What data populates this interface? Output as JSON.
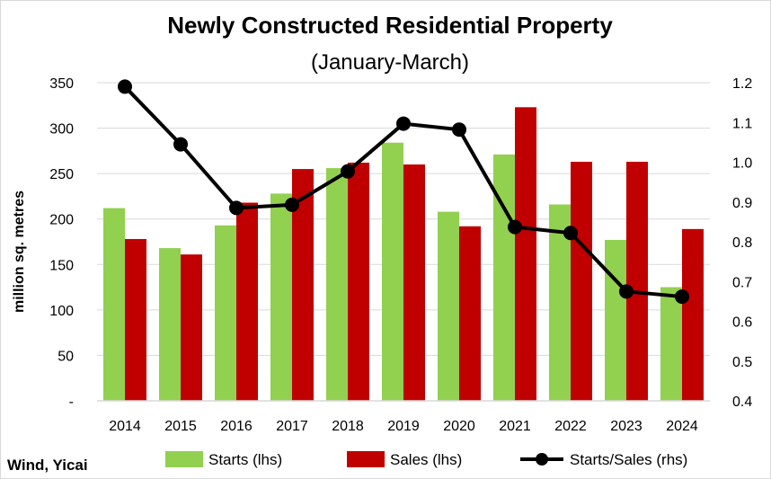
{
  "chart_data": {
    "type": "bar",
    "title": "Newly Constructed Residential Property",
    "subtitle": "(January-March)",
    "ylabel": "million sq. metres",
    "categories": [
      "2014",
      "2015",
      "2016",
      "2017",
      "2018",
      "2019",
      "2020",
      "2021",
      "2022",
      "2023",
      "2024"
    ],
    "ylim": [
      0,
      350
    ],
    "y_ticks": [
      "-",
      "50",
      "100",
      "150",
      "200",
      "250",
      "300",
      "350"
    ],
    "y2lim": [
      0.4,
      1.2
    ],
    "y2_ticks": [
      "0.4",
      "0.5",
      "0.6",
      "0.7",
      "0.8",
      "0.9",
      "1.0",
      "1.1",
      "1.2"
    ],
    "series": [
      {
        "name": "Starts (lhs)",
        "kind": "bar",
        "color": "#92d050",
        "values": [
          212,
          168,
          193,
          228,
          256,
          284,
          208,
          271,
          216,
          177,
          125
        ]
      },
      {
        "name": "Sales (lhs)",
        "kind": "bar",
        "color": "#c00000",
        "values": [
          178,
          161,
          218,
          255,
          262,
          260,
          192,
          323,
          263,
          263,
          189
        ]
      },
      {
        "name": "Starts/Sales (rhs)",
        "kind": "line",
        "axis": "right",
        "color": "#000000",
        "values": [
          1.19,
          1.045,
          0.885,
          0.893,
          0.977,
          1.097,
          1.082,
          0.837,
          0.822,
          0.675,
          0.662
        ]
      }
    ],
    "gridlines": true,
    "legend_position": "bottom"
  },
  "source": "Wind, Yicai"
}
